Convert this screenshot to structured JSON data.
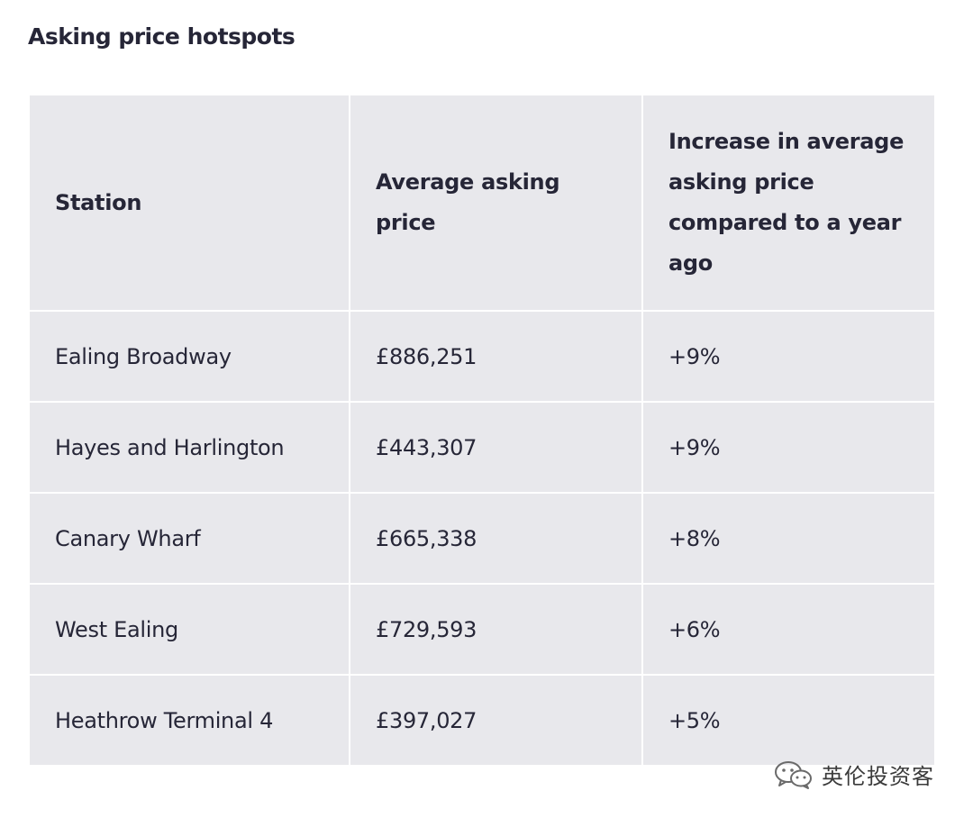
{
  "heading": "Asking price hotspots",
  "table": {
    "headers": [
      "Station",
      "Average asking price",
      "Increase in average asking price compared to a year ago"
    ],
    "rows": [
      [
        "Ealing Broadway",
        "£886,251",
        "+9%"
      ],
      [
        "Hayes and Harlington",
        "£443,307",
        "+9%"
      ],
      [
        "Canary Wharf",
        "£665,338",
        "+8%"
      ],
      [
        "West Ealing",
        "£729,593",
        "+6%"
      ],
      [
        "Heathrow Terminal 4",
        "£397,027",
        "+5%"
      ]
    ]
  },
  "watermark": {
    "icon": "wechat-icon",
    "text": "英伦投资客"
  }
}
